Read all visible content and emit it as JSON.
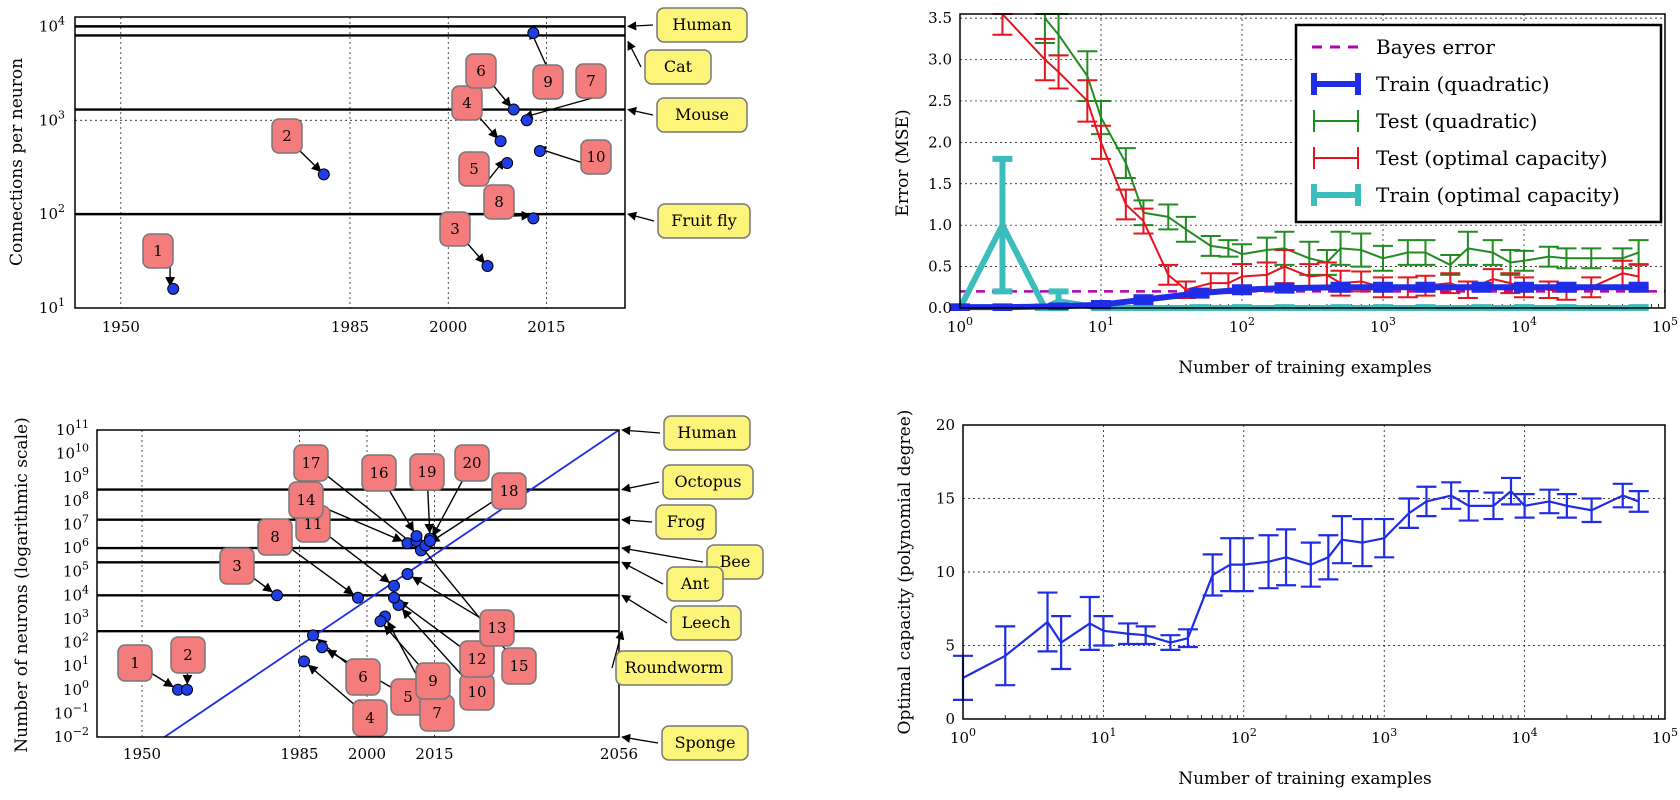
{
  "chart_data": [
    {
      "id": "connections",
      "type": "scatter",
      "ylabel": "Connections per neuron",
      "x_ticks": [
        "1950",
        "1985",
        "2000",
        "2015"
      ],
      "y_ticks": [
        "10",
        "10",
        "10",
        "10"
      ],
      "y_tick_exponents": [
        "1",
        "2",
        "3",
        "4"
      ],
      "xlim": [
        1943,
        2027
      ],
      "ylim_log10": [
        1,
        4.1
      ],
      "points": [
        {
          "label": "1",
          "x": 1958,
          "y": 16
        },
        {
          "label": "2",
          "x": 1981,
          "y": 265
        },
        {
          "label": "3",
          "x": 2006,
          "y": 28
        },
        {
          "label": "4",
          "x": 2008,
          "y": 600
        },
        {
          "label": "5",
          "x": 2009,
          "y": 350
        },
        {
          "label": "6",
          "x": 2010,
          "y": 1300
        },
        {
          "label": "7",
          "x": 2012,
          "y": 1000
        },
        {
          "label": "8",
          "x": 2013,
          "y": 90
        },
        {
          "label": "9",
          "x": 2013,
          "y": 8500
        },
        {
          "label": "10",
          "x": 2014,
          "y": 470
        }
      ],
      "reference_lines": [
        {
          "name": "Human",
          "value": 10000
        },
        {
          "name": "Cat",
          "value": 8000
        },
        {
          "name": "Mouse",
          "value": 1300
        },
        {
          "name": "Fruit fly",
          "value": 100
        }
      ]
    },
    {
      "id": "neurons",
      "type": "scatter",
      "ylabel": "Number of neurons (logarithmic scale)",
      "x_ticks": [
        "1950",
        "1985",
        "2000",
        "2015",
        "2056"
      ],
      "y_ticks": [
        "10",
        "10",
        "10",
        "10",
        "10",
        "10",
        "10",
        "10",
        "10",
        "10",
        "10",
        "10",
        "10",
        "10"
      ],
      "y_tick_exponents": [
        "−2",
        "−1",
        "0",
        "1",
        "2",
        "3",
        "4",
        "5",
        "6",
        "7",
        "8",
        "9",
        "10",
        "11"
      ],
      "xlim": [
        1940,
        2056
      ],
      "ylim_log10": [
        -2,
        11
      ],
      "points": [
        {
          "label": "1",
          "x": 1958,
          "y": 1
        },
        {
          "label": "2",
          "x": 1960,
          "y": 1
        },
        {
          "label": "3",
          "x": 1980,
          "y": 10000
        },
        {
          "label": "4",
          "x": 1986,
          "y": 16
        },
        {
          "label": "5",
          "x": 1990,
          "y": 63
        },
        {
          "label": "6",
          "x": 1988,
          "y": 200
        },
        {
          "label": "7",
          "x": 2004,
          "y": 1260
        },
        {
          "label": "8",
          "x": 1998,
          "y": 7900
        },
        {
          "label": "9",
          "x": 2003,
          "y": 800
        },
        {
          "label": "10",
          "x": 2007,
          "y": 3900
        },
        {
          "label": "11",
          "x": 2006,
          "y": 25000
        },
        {
          "label": "12",
          "x": 2006,
          "y": 8000
        },
        {
          "label": "13",
          "x": 2009,
          "y": 80000
        },
        {
          "label": "14",
          "x": 2009,
          "y": 1600000
        },
        {
          "label": "15",
          "x": 2011,
          "y": 2000000
        },
        {
          "label": "16",
          "x": 2011,
          "y": 3200000
        },
        {
          "label": "17",
          "x": 2012,
          "y": 800000
        },
        {
          "label": "18",
          "x": 2013,
          "y": 1300000
        },
        {
          "label": "19",
          "x": 2014,
          "y": 2500000
        },
        {
          "label": "20",
          "x": 2014,
          "y": 2000000
        }
      ],
      "reference_lines": [
        {
          "name": "Human",
          "value": 100000000000
        },
        {
          "name": "Octopus",
          "value": 300000000
        },
        {
          "name": "Frog",
          "value": 16000000
        },
        {
          "name": "Bee",
          "value": 1000000
        },
        {
          "name": "Ant",
          "value": 250000
        },
        {
          "name": "Leech",
          "value": 10000
        },
        {
          "name": "Roundworm",
          "value": 302
        },
        {
          "name": "Sponge",
          "value": 0.01
        }
      ],
      "trend_line": {
        "from": [
          1955,
          0.01
        ],
        "to": [
          2056,
          100000000000
        ]
      }
    },
    {
      "id": "error",
      "type": "line",
      "ylabel": "Error (MSE)",
      "xlabel": "Number of training examples",
      "x_tick_exponents": [
        "0",
        "1",
        "2",
        "3",
        "4",
        "5"
      ],
      "x_tick_base": "10",
      "y_ticks": [
        "0.0",
        "0.5",
        "1.0",
        "1.5",
        "2.0",
        "2.5",
        "3.0",
        "3.5"
      ],
      "xlim_log10": [
        0,
        5
      ],
      "ylim": [
        0,
        3.55
      ],
      "legend": {
        "placement": "top-right",
        "entries": [
          "Bayes error",
          "Train (quadratic)",
          "Test (quadratic)",
          "Test (optimal capacity)",
          "Train (optimal capacity)"
        ]
      },
      "bayes_error": 0.2,
      "series": [
        {
          "name": "Train (quadratic)",
          "color": "#1f2ee6",
          "x": [
            1,
            2,
            5,
            10,
            20,
            50,
            100,
            200,
            500,
            1000,
            2000,
            5000,
            10000,
            20000,
            65000
          ],
          "y": [
            0.01,
            0.01,
            0.02,
            0.04,
            0.1,
            0.18,
            0.22,
            0.24,
            0.25,
            0.25,
            0.25,
            0.25,
            0.25,
            0.25,
            0.25
          ],
          "err": [
            0.01,
            0.01,
            0.01,
            0.02,
            0.03,
            0.03,
            0.03,
            0.03,
            0.03,
            0.03,
            0.03,
            0.03,
            0.03,
            0.03,
            0.03
          ]
        },
        {
          "name": "Test (quadratic)",
          "color": "#228b22",
          "x": [
            4,
            5,
            8,
            10,
            15,
            20,
            30,
            40,
            60,
            80,
            100,
            150,
            200,
            300,
            400,
            500,
            700,
            1000,
            1500,
            2000,
            3000,
            4000,
            6000,
            8000,
            10000,
            15000,
            20000,
            30000,
            50000,
            65000
          ],
          "y": [
            3.5,
            3.3,
            2.8,
            2.3,
            1.75,
            1.15,
            1.1,
            0.95,
            0.75,
            0.72,
            0.65,
            0.7,
            0.72,
            0.6,
            0.55,
            0.72,
            0.7,
            0.6,
            0.67,
            0.67,
            0.52,
            0.72,
            0.67,
            0.55,
            0.57,
            0.62,
            0.6,
            0.6,
            0.6,
            0.67
          ],
          "err": [
            0.3,
            0.25,
            0.3,
            0.2,
            0.18,
            0.15,
            0.15,
            0.15,
            0.12,
            0.1,
            0.12,
            0.15,
            0.2,
            0.2,
            0.15,
            0.2,
            0.2,
            0.15,
            0.15,
            0.15,
            0.12,
            0.2,
            0.15,
            0.15,
            0.12,
            0.12,
            0.12,
            0.12,
            0.12,
            0.15
          ]
        },
        {
          "name": "Test (optimal capacity)",
          "color": "#e6141e",
          "x": [
            2,
            4,
            5,
            8,
            10,
            15,
            20,
            30,
            40,
            60,
            80,
            100,
            150,
            200,
            300,
            400,
            500,
            700,
            1000,
            1500,
            2000,
            3000,
            4000,
            6000,
            8000,
            10000,
            15000,
            20000,
            30000,
            50000,
            65000
          ],
          "y": [
            3.6,
            3.0,
            2.85,
            2.5,
            2.0,
            1.25,
            1.05,
            0.4,
            0.22,
            0.3,
            0.3,
            0.38,
            0.4,
            0.5,
            0.38,
            0.4,
            0.3,
            0.32,
            0.25,
            0.25,
            0.27,
            0.3,
            0.22,
            0.35,
            0.3,
            0.25,
            0.22,
            0.2,
            0.25,
            0.42,
            0.38
          ],
          "err": [
            0.3,
            0.25,
            0.2,
            0.25,
            0.2,
            0.18,
            0.15,
            0.12,
            0.1,
            0.12,
            0.12,
            0.15,
            0.15,
            0.2,
            0.15,
            0.15,
            0.15,
            0.12,
            0.12,
            0.12,
            0.12,
            0.12,
            0.1,
            0.12,
            0.12,
            0.12,
            0.1,
            0.1,
            0.12,
            0.15,
            0.15
          ]
        },
        {
          "name": "Train (optimal capacity)",
          "color": "#3cbdbd",
          "x": [
            1,
            2,
            4,
            5,
            10,
            20,
            50,
            100,
            200,
            500,
            1000,
            2000,
            5000,
            10000,
            20000,
            65000
          ],
          "y": [
            0.0,
            1.0,
            0.0,
            0.08,
            0.0,
            0.0,
            0.0,
            0.0,
            0.0,
            0.0,
            0.0,
            0.0,
            0.0,
            0.0,
            0.0,
            0.0
          ],
          "err": [
            0.02,
            0.8,
            0.02,
            0.12,
            0.02,
            0.01,
            0.01,
            0.01,
            0.01,
            0.01,
            0.01,
            0.01,
            0.01,
            0.01,
            0.01,
            0.01
          ]
        }
      ]
    },
    {
      "id": "capacity",
      "type": "line",
      "ylabel": "Optimal capacity (polynomial degree)",
      "xlabel": "Number of training examples",
      "x_tick_exponents": [
        "0",
        "1",
        "2",
        "3",
        "4",
        "5"
      ],
      "x_tick_base": "10",
      "y_ticks": [
        "0",
        "5",
        "10",
        "15",
        "20"
      ],
      "xlim_log10": [
        0,
        5
      ],
      "ylim": [
        0,
        20
      ],
      "series": [
        {
          "name": "Optimal capacity",
          "color": "#1f2ee6",
          "x": [
            1,
            2,
            4,
            5,
            8,
            10,
            15,
            20,
            30,
            40,
            60,
            80,
            100,
            150,
            200,
            300,
            400,
            500,
            700,
            1000,
            1500,
            2000,
            3000,
            4000,
            6000,
            8000,
            10000,
            15000,
            20000,
            30000,
            50000,
            65000
          ],
          "y": [
            2.8,
            4.3,
            6.6,
            5.2,
            6.5,
            6.0,
            5.8,
            5.7,
            5.2,
            5.5,
            9.8,
            10.5,
            10.5,
            10.7,
            11.0,
            10.5,
            11.0,
            12.2,
            12.0,
            12.3,
            14.0,
            14.8,
            15.2,
            14.5,
            14.5,
            15.5,
            14.5,
            14.8,
            14.5,
            14.2,
            15.2,
            14.8
          ],
          "err": [
            1.5,
            2.0,
            2.0,
            1.8,
            1.8,
            1.0,
            0.7,
            0.6,
            0.5,
            0.6,
            1.4,
            1.8,
            1.8,
            1.8,
            1.9,
            1.5,
            1.5,
            1.6,
            1.6,
            1.3,
            1.0,
            1.0,
            0.9,
            1.0,
            0.9,
            0.9,
            0.8,
            0.8,
            0.8,
            0.8,
            0.8,
            0.7
          ]
        }
      ]
    }
  ]
}
